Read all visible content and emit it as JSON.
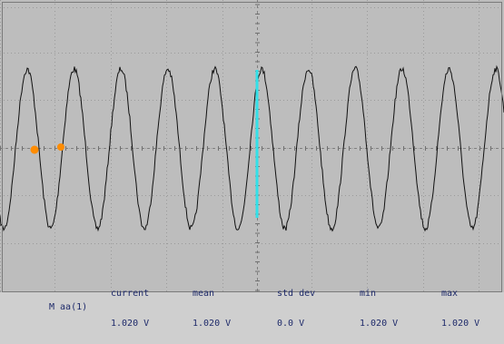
{
  "colors": {
    "screen_bg": "#bdbdbd",
    "grid": "#9a9a9a",
    "trace": "#111111",
    "cursor_line": "#33e0e8",
    "marker": "#ff8c00",
    "text": "#1e2a6a"
  },
  "measurements": {
    "channel_label": "M aa(1)",
    "columns": [
      {
        "label": "current",
        "value": "1.020 V"
      },
      {
        "label": "mean",
        "value": "1.020 V"
      },
      {
        "label": "std dev",
        "value": "0.0 V"
      },
      {
        "label": "min",
        "value": "1.020 V"
      },
      {
        "label": "max",
        "value": "1.020 V"
      }
    ]
  }
}
